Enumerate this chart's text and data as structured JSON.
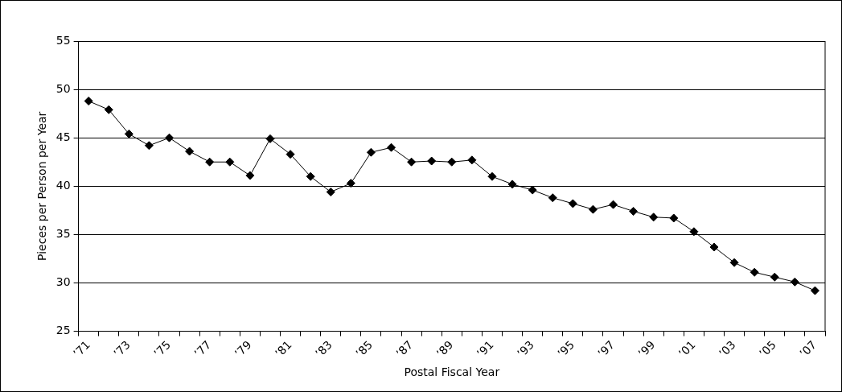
{
  "chart_data": {
    "type": "line",
    "xlabel": "Postal Fiscal Year",
    "ylabel": "Pieces per Person per Year",
    "categories": [
      "’71",
      null,
      "’73",
      null,
      "’75",
      null,
      "’77",
      null,
      "’79",
      null,
      "’81",
      null,
      "’83",
      null,
      "’85",
      null,
      "’87",
      null,
      "’89",
      null,
      "’91",
      null,
      "’93",
      null,
      "’95",
      null,
      "’97",
      null,
      "’99",
      null,
      "’01",
      null,
      "’03",
      null,
      "’05",
      null,
      "’07"
    ],
    "series": [
      {
        "color": "#000000",
        "values": [
          48.8,
          47.9,
          45.4,
          44.2,
          45.0,
          43.6,
          42.5,
          42.5,
          41.1,
          44.9,
          43.3,
          41.0,
          39.4,
          40.3,
          43.5,
          44.0,
          42.5,
          42.6,
          42.5,
          42.7,
          41.0,
          40.2,
          39.6,
          38.8,
          38.2,
          37.6,
          38.1,
          37.4,
          36.8,
          36.7,
          35.3,
          33.7,
          32.1,
          31.1,
          30.6,
          30.1,
          29.2
        ]
      }
    ],
    "ylim": [
      25,
      55
    ],
    "yticks": [
      25,
      30,
      35,
      40,
      45,
      50,
      55
    ],
    "grid": "y",
    "legend": false,
    "marker": "diamond",
    "line_style": "solid"
  }
}
